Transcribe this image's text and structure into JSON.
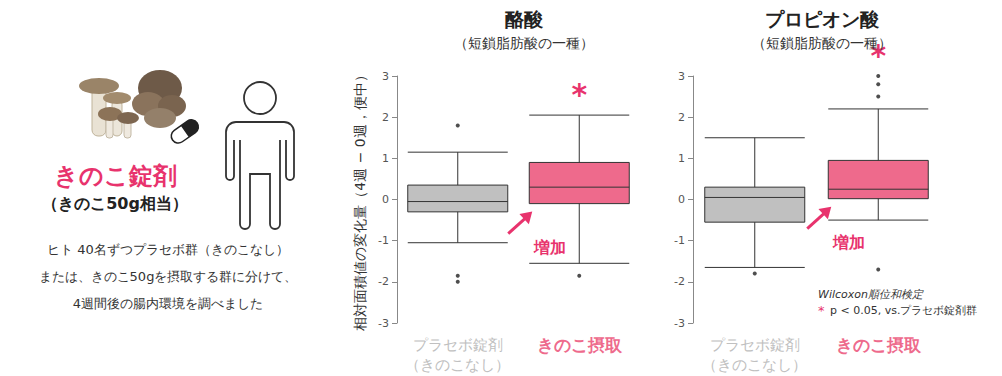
{
  "illustration": {
    "label": "きのこ錠剤",
    "sublabel": "（きのこ50g相当）",
    "description": [
      "ヒト 40名ずつプラセボ群（きのこなし）",
      "または、きのこ50gを摂取する群に分けて、",
      "4週間後の腸内環境を調べました"
    ]
  },
  "note": {
    "title": "Wilcoxon順位和検定",
    "marker": "*",
    "text": "p < 0.05, vs.プラセボ錠剤群"
  },
  "chart_data": [
    {
      "type": "boxplot",
      "title": "酪酸",
      "subtitle": "（短鎖脂肪酸の一種）",
      "y_label": "相対面積値の変化量（4週 − 0週，便中）",
      "categories": [
        "プラセボ錠剤\n（きのこなし）",
        "きのこ摂取"
      ],
      "boxes": [
        {
          "low": -1.05,
          "q1": -0.3,
          "median": -0.05,
          "q3": 0.35,
          "high": 1.15
        },
        {
          "low": -1.55,
          "q1": -0.1,
          "median": 0.3,
          "q3": 0.9,
          "high": 2.05
        }
      ],
      "outliers": [
        [
          1.8,
          -1.85,
          -2.0
        ],
        [
          -1.85
        ]
      ],
      "colors": [
        "#c0c0c0",
        "#ee6a8c"
      ],
      "ylim": [
        -3,
        3
      ],
      "yticks": [
        -3,
        -2,
        -1,
        0,
        1,
        2,
        3
      ],
      "grid": false,
      "annotations": [
        {
          "text": "*",
          "category": "きのこ摂取",
          "position": "above"
        },
        {
          "text": "増加",
          "category": "きのこ摂取",
          "position": "arrow"
        }
      ]
    },
    {
      "type": "boxplot",
      "title": "プロピオン酸",
      "subtitle": "（短鎖脂肪酸の一種）",
      "categories": [
        "プラセボ錠剤\n（きのこなし）",
        "きのこ摂取"
      ],
      "boxes": [
        {
          "low": -1.65,
          "q1": -0.55,
          "median": 0.05,
          "q3": 0.3,
          "high": 1.5
        },
        {
          "low": -0.5,
          "q1": 0.02,
          "median": 0.25,
          "q3": 0.95,
          "high": 2.2
        }
      ],
      "outliers": [
        [
          -1.8
        ],
        [
          2.5,
          2.8,
          3.0,
          -1.7
        ]
      ],
      "colors": [
        "#c0c0c0",
        "#ee6a8c"
      ],
      "ylim": [
        -3,
        3
      ],
      "yticks": [
        -3,
        -2,
        -1,
        0,
        1,
        2,
        3
      ],
      "grid": false,
      "annotations": [
        {
          "text": "*",
          "category": "きのこ摂取",
          "position": "above"
        },
        {
          "text": "増加",
          "category": "きのこ摂取",
          "position": "arrow"
        }
      ]
    }
  ]
}
